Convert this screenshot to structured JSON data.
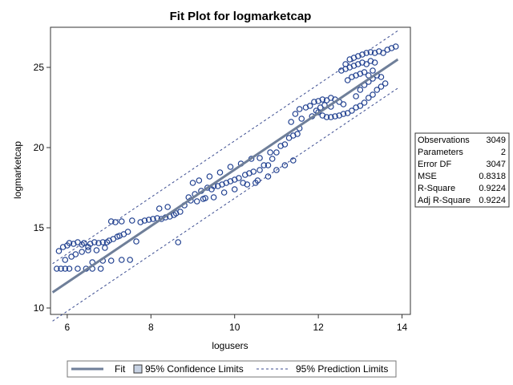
{
  "chart_data": {
    "type": "scatter",
    "title": "Fit Plot for logmarketcap",
    "xlabel": "logusers",
    "ylabel": "logmarketcap",
    "xlim": [
      5.6,
      14.2
    ],
    "ylim": [
      9.6,
      27.5
    ],
    "xticks": [
      6,
      8,
      10,
      12,
      14
    ],
    "yticks": [
      10,
      15,
      20,
      25
    ],
    "x_tick_labels": [
      "6",
      "8",
      "10",
      "12",
      "14"
    ],
    "y_tick_labels": [
      "10",
      "15",
      "20",
      "25"
    ],
    "grid": false,
    "fit": {
      "intercept": 1.03,
      "slope": 1.76
    },
    "confidence_halfwidth": 0.08,
    "prediction_halfwidth": 1.79,
    "legend_items": [
      "Fit",
      "95% Confidence Limits",
      "95% Prediction Limits"
    ],
    "legend_position": "bottom",
    "stats_position": "right",
    "stats": [
      {
        "label": "Observations",
        "value": "3049"
      },
      {
        "label": "Parameters",
        "value": "2"
      },
      {
        "label": "Error DF",
        "value": "3047"
      },
      {
        "label": "MSE",
        "value": "0.8318"
      },
      {
        "label": "R-Square",
        "value": "0.9224"
      },
      {
        "label": "Adj R-Square",
        "value": "0.9224"
      }
    ],
    "points": [
      [
        5.75,
        12.45
      ],
      [
        5.85,
        12.45
      ],
      [
        5.95,
        12.45
      ],
      [
        6.05,
        12.45
      ],
      [
        6.25,
        12.45
      ],
      [
        6.45,
        12.45
      ],
      [
        6.6,
        12.45
      ],
      [
        6.8,
        12.45
      ],
      [
        6.6,
        12.85
      ],
      [
        6.85,
        12.95
      ],
      [
        7.05,
        12.95
      ],
      [
        7.3,
        13.0
      ],
      [
        7.5,
        13.0
      ],
      [
        5.8,
        13.55
      ],
      [
        5.9,
        13.8
      ],
      [
        6.0,
        13.9
      ],
      [
        6.05,
        14.05
      ],
      [
        6.15,
        14.0
      ],
      [
        6.25,
        14.1
      ],
      [
        6.35,
        13.95
      ],
      [
        6.4,
        14.05
      ],
      [
        6.5,
        13.8
      ],
      [
        6.55,
        14.0
      ],
      [
        6.65,
        14.1
      ],
      [
        6.75,
        14.05
      ],
      [
        6.85,
        14.1
      ],
      [
        6.95,
        14.1
      ],
      [
        7.0,
        14.2
      ],
      [
        7.1,
        14.3
      ],
      [
        7.2,
        14.45
      ],
      [
        7.25,
        14.5
      ],
      [
        7.35,
        14.6
      ],
      [
        7.45,
        14.75
      ],
      [
        5.95,
        13.0
      ],
      [
        6.1,
        13.2
      ],
      [
        6.2,
        13.35
      ],
      [
        6.35,
        13.5
      ],
      [
        6.5,
        13.6
      ],
      [
        6.7,
        13.6
      ],
      [
        6.9,
        13.75
      ],
      [
        7.05,
        15.4
      ],
      [
        7.15,
        15.35
      ],
      [
        7.3,
        15.4
      ],
      [
        7.55,
        15.45
      ],
      [
        7.65,
        14.15
      ],
      [
        7.75,
        15.35
      ],
      [
        7.85,
        15.45
      ],
      [
        7.95,
        15.5
      ],
      [
        8.05,
        15.55
      ],
      [
        8.15,
        15.6
      ],
      [
        8.25,
        15.55
      ],
      [
        8.35,
        15.65
      ],
      [
        8.45,
        15.7
      ],
      [
        8.55,
        15.8
      ],
      [
        8.6,
        15.9
      ],
      [
        8.2,
        16.2
      ],
      [
        8.4,
        16.3
      ],
      [
        8.7,
        16.0
      ],
      [
        8.65,
        14.1
      ],
      [
        8.8,
        16.4
      ],
      [
        8.9,
        16.9
      ],
      [
        8.95,
        16.7
      ],
      [
        9.05,
        17.1
      ],
      [
        9.1,
        16.65
      ],
      [
        9.2,
        17.3
      ],
      [
        9.25,
        16.8
      ],
      [
        9.35,
        17.5
      ],
      [
        9.3,
        16.85
      ],
      [
        9.45,
        17.4
      ],
      [
        9.5,
        17.6
      ],
      [
        9.6,
        17.6
      ],
      [
        9.7,
        17.7
      ],
      [
        9.8,
        17.8
      ],
      [
        9.9,
        17.9
      ],
      [
        10.0,
        18.0
      ],
      [
        10.1,
        18.1
      ],
      [
        10.2,
        17.8
      ],
      [
        10.25,
        18.3
      ],
      [
        10.35,
        18.4
      ],
      [
        10.45,
        18.5
      ],
      [
        10.5,
        17.8
      ],
      [
        10.6,
        18.6
      ],
      [
        10.7,
        18.9
      ],
      [
        10.8,
        18.9
      ],
      [
        10.9,
        19.3
      ],
      [
        11.0,
        19.7
      ],
      [
        11.1,
        20.1
      ],
      [
        11.2,
        20.2
      ],
      [
        11.3,
        20.6
      ],
      [
        11.4,
        20.75
      ],
      [
        11.5,
        20.85
      ],
      [
        11.55,
        21.2
      ],
      [
        9.0,
        17.8
      ],
      [
        9.15,
        17.95
      ],
      [
        9.4,
        18.2
      ],
      [
        9.65,
        18.45
      ],
      [
        9.9,
        18.8
      ],
      [
        10.15,
        19.0
      ],
      [
        10.4,
        19.3
      ],
      [
        10.6,
        19.35
      ],
      [
        10.85,
        19.7
      ],
      [
        9.5,
        16.9
      ],
      [
        9.75,
        17.2
      ],
      [
        10.0,
        17.4
      ],
      [
        10.3,
        17.7
      ],
      [
        10.55,
        17.95
      ],
      [
        10.8,
        18.2
      ],
      [
        11.0,
        18.6
      ],
      [
        11.2,
        18.9
      ],
      [
        11.4,
        19.2
      ],
      [
        11.35,
        21.6
      ],
      [
        11.45,
        22.1
      ],
      [
        11.55,
        22.4
      ],
      [
        11.6,
        21.8
      ],
      [
        11.7,
        22.5
      ],
      [
        11.8,
        22.6
      ],
      [
        11.9,
        22.85
      ],
      [
        12.0,
        22.9
      ],
      [
        12.1,
        23.0
      ],
      [
        12.2,
        22.95
      ],
      [
        12.3,
        23.1
      ],
      [
        12.4,
        23.0
      ],
      [
        12.5,
        22.85
      ],
      [
        12.6,
        22.7
      ],
      [
        11.85,
        21.95
      ],
      [
        11.95,
        22.3
      ],
      [
        12.05,
        22.5
      ],
      [
        12.15,
        22.65
      ],
      [
        12.3,
        22.55
      ],
      [
        12.0,
        22.2
      ],
      [
        12.1,
        22.0
      ],
      [
        12.2,
        21.9
      ],
      [
        12.3,
        21.9
      ],
      [
        12.4,
        21.95
      ],
      [
        12.5,
        22.0
      ],
      [
        12.6,
        22.1
      ],
      [
        12.7,
        22.15
      ],
      [
        12.8,
        22.3
      ],
      [
        12.9,
        22.5
      ],
      [
        12.55,
        24.8
      ],
      [
        12.65,
        25.2
      ],
      [
        12.75,
        25.5
      ],
      [
        12.85,
        25.6
      ],
      [
        12.95,
        25.7
      ],
      [
        13.05,
        25.8
      ],
      [
        13.15,
        25.9
      ],
      [
        13.25,
        25.95
      ],
      [
        13.35,
        25.9
      ],
      [
        13.45,
        26.0
      ],
      [
        13.55,
        25.9
      ],
      [
        13.65,
        26.1
      ],
      [
        13.75,
        26.2
      ],
      [
        13.85,
        26.3
      ],
      [
        12.65,
        24.9
      ],
      [
        12.75,
        25.0
      ],
      [
        12.85,
        25.1
      ],
      [
        12.95,
        25.2
      ],
      [
        13.05,
        25.3
      ],
      [
        13.15,
        25.2
      ],
      [
        13.25,
        25.4
      ],
      [
        13.35,
        25.3
      ],
      [
        12.7,
        24.2
      ],
      [
        12.8,
        24.4
      ],
      [
        12.9,
        24.5
      ],
      [
        13.0,
        24.6
      ],
      [
        13.1,
        24.7
      ],
      [
        13.2,
        24.5
      ],
      [
        13.3,
        24.8
      ],
      [
        12.9,
        23.2
      ],
      [
        13.0,
        23.6
      ],
      [
        13.1,
        23.9
      ],
      [
        13.2,
        24.1
      ],
      [
        13.3,
        24.3
      ],
      [
        13.4,
        24.5
      ],
      [
        13.5,
        24.4
      ],
      [
        13.0,
        22.6
      ],
      [
        13.1,
        22.8
      ],
      [
        13.2,
        23.1
      ],
      [
        13.3,
        23.3
      ],
      [
        13.4,
        23.6
      ],
      [
        13.5,
        23.8
      ],
      [
        13.6,
        24.0
      ]
    ]
  }
}
